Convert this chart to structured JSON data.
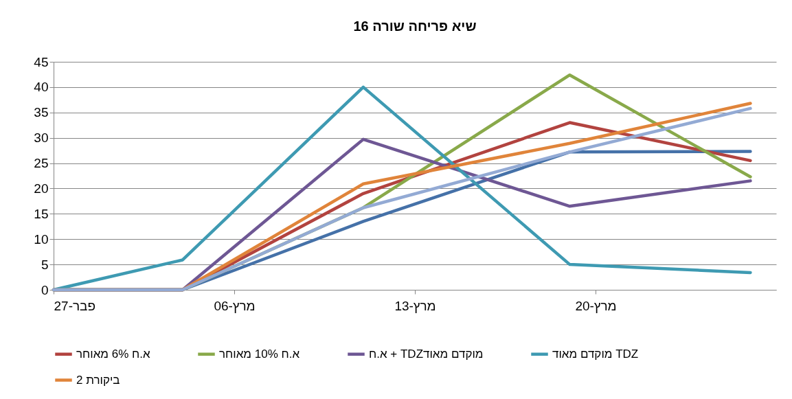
{
  "chart_data": {
    "type": "line",
    "title": "שיא פריחה שורה 16",
    "x": [
      "--02-27",
      "--03-04",
      "--03-11",
      "--03-19",
      "--03-26"
    ],
    "xlim": [
      "--02-27",
      "--03-27"
    ],
    "xticks": [
      {
        "value": "--02-27",
        "label": "27-פבר"
      },
      {
        "value": "--03-06",
        "label": "06-מרץ"
      },
      {
        "value": "--03-13",
        "label": "13-מרץ"
      },
      {
        "value": "--03-20",
        "label": "20-מרץ"
      }
    ],
    "ylim": [
      0,
      45
    ],
    "yticks": [
      0,
      5,
      10,
      15,
      20,
      25,
      30,
      35,
      40,
      45
    ],
    "grid": "y",
    "legend": "bottom",
    "series": [
      {
        "color": "#4571a8",
        "values": [
          0,
          0,
          13.5,
          27.2,
          27.3
        ]
      },
      {
        "name": "א.ח 6% מאוחר",
        "color": "#b2433f",
        "values": [
          0,
          0,
          19,
          33,
          25.5
        ]
      },
      {
        "name": "א.ח 10% מאוחר",
        "color": "#89a94a",
        "values": [
          0,
          0,
          16.2,
          42.4,
          22.3
        ]
      },
      {
        "name": "א.ח + TDZמוקדם מאוד",
        "color": "#6e5794",
        "values": [
          0,
          0,
          29.7,
          16.5,
          21.5
        ]
      },
      {
        "name": "מוקדם מאוד TDZ",
        "color": "#3e9ab2",
        "values": [
          0,
          5.9,
          40,
          5,
          3.4
        ]
      },
      {
        "name": "ביקורת 2",
        "color": "#e0843a",
        "values": [
          0,
          0,
          20.9,
          28.9,
          36.8
        ]
      },
      {
        "color": "#93aad4",
        "values": [
          0,
          0,
          16.2,
          27.2,
          35.8
        ]
      }
    ]
  }
}
